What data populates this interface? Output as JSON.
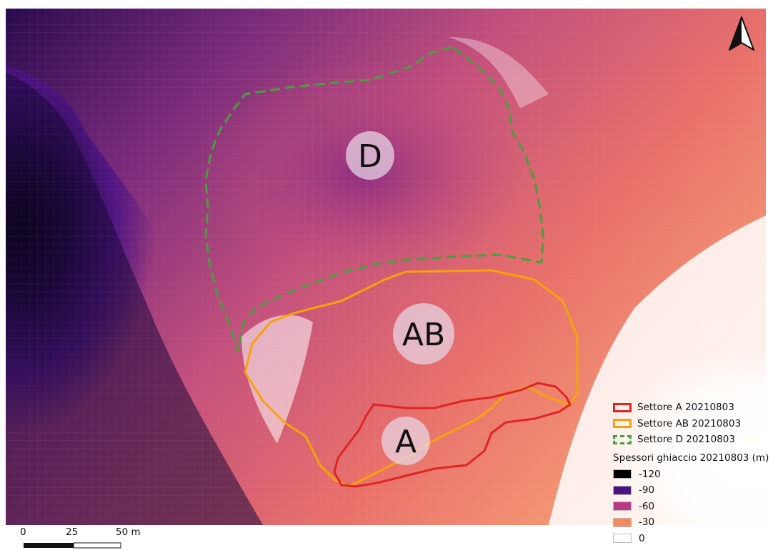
{
  "sectors": [
    {
      "id": "D",
      "label": "D",
      "color": "#4a9e3e",
      "style": "dashed"
    },
    {
      "id": "AB",
      "label": "AB",
      "color": "#f4a30b",
      "style": "solid"
    },
    {
      "id": "A",
      "label": "A",
      "color": "#e02424",
      "style": "solid"
    }
  ],
  "legend": {
    "layers": [
      {
        "label": "Settore A 20210803",
        "color": "#e02424",
        "style": "solid"
      },
      {
        "label": "Settore AB 20210803",
        "color": "#f4a30b",
        "style": "solid"
      },
      {
        "label": "Settore D 20210803",
        "color": "#4a9e3e",
        "style": "dashed"
      }
    ],
    "ramp_title": "Spessori ghiaccio 20210803 (m)",
    "ramp": [
      {
        "value": "-120",
        "color": "#000000"
      },
      {
        "value": "-90",
        "color": "#4a1283"
      },
      {
        "value": "-60",
        "color": "#b83c83"
      },
      {
        "value": "-30",
        "color": "#f7895e"
      },
      {
        "value": "0",
        "color": "#ffffff"
      }
    ]
  },
  "scalebar": {
    "ticks": [
      "0",
      "25",
      "50 m"
    ]
  },
  "north_arrow": {
    "icon": "north-arrow-icon"
  }
}
